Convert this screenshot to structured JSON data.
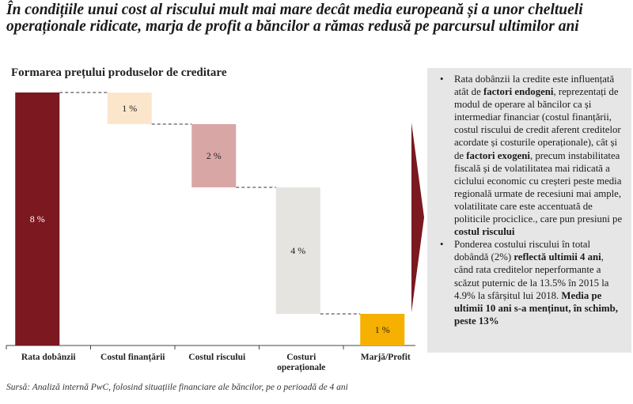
{
  "headline": "În condițiile unui cost al riscului mult mai mare decât media europeană și a unor cheltueli operaționale ridicate, marja de profit a băncilor a rămas redusă pe parcursul ultimilor ani",
  "chart_title": "Formarea prețului produselor de creditare",
  "source": "Sursă: Analiză internă PwC, folosind situațiile financiare ale băncilor, pe o perioadă de 4 ani",
  "colors": {
    "bar_total": "#7b1820",
    "bar_funding": "#fbe6cc",
    "bar_risk": "#d9a6a6",
    "bar_opex": "#e6e4e0",
    "bar_profit": "#f5b000",
    "arrow": "#7b1820",
    "panel_bg": "#e6e6e6"
  },
  "chart_data": {
    "type": "waterfall",
    "title": "Formarea prețului produselor de creditare",
    "categories": [
      "Rata dobânzii",
      "Costul finanțării",
      "Costul riscului",
      "Costuri operaționale",
      "Marjă/Profit"
    ],
    "values": [
      8,
      1,
      2,
      4,
      1
    ],
    "labels": [
      "8 %",
      "1 %",
      "2 %",
      "4 %",
      "1 %"
    ],
    "ylim": [
      0,
      8
    ],
    "grid": false
  },
  "panel": {
    "bullets": [
      [
        {
          "t": "Rata dobânzii la credite este influențată atât de ",
          "b": false
        },
        {
          "t": "factori endogeni",
          "b": true
        },
        {
          "t": ", reprezentați de modul de operare al băncilor ca și intermediar financiar (costul finanțării, costul riscului de credit aferent creditelor acordate și costurile operaționale), cât și de ",
          "b": false
        },
        {
          "t": "factori exogeni",
          "b": true
        },
        {
          "t": ", precum instabilitatea fiscală și de volatilitatea mai ridicată a ciclului economic cu creșteri peste media regională urmate de recesiuni mai ample, volatilitate care este accentuată de politicile prociclice., care pun presiuni pe ",
          "b": false
        },
        {
          "t": "costul riscului",
          "b": true
        }
      ],
      [
        {
          "t": "Ponderea costului riscului în total dobândă (2%) ",
          "b": false
        },
        {
          "t": "reflectă ultimii 4 ani",
          "b": true
        },
        {
          "t": ", când rata creditelor neperformante a scăzut puternic de la 13.5% în 2015 la 4.9% la sfârșitul lui 2018. ",
          "b": false
        },
        {
          "t": "Media pe ultimii 10 ani s-a menținut, în schimb, peste 13%",
          "b": true
        }
      ]
    ]
  }
}
